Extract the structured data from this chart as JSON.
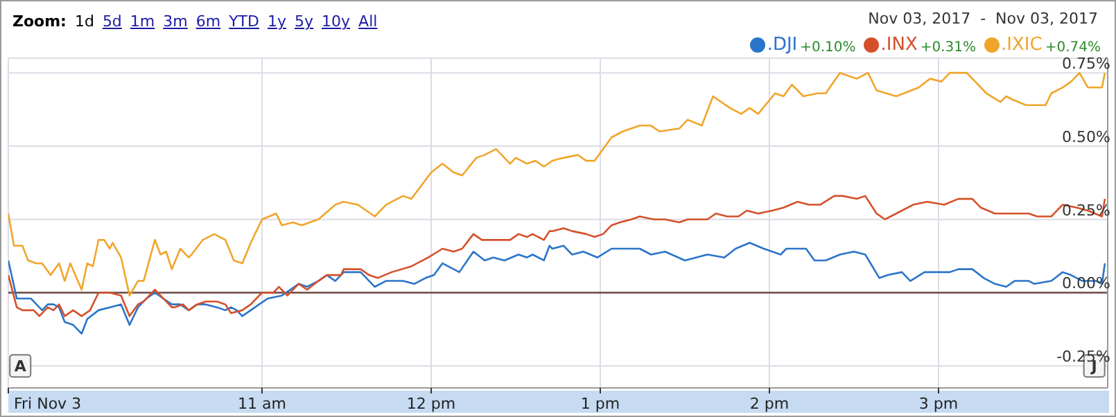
{
  "chart_data": {
    "type": "line",
    "annotations": [
      "Zoom:",
      "1d",
      "5d",
      "1m",
      "3m",
      "6m",
      "YTD",
      "1y",
      "5y",
      "10y",
      "All",
      "Nov 03, 2017  -  Nov 03, 2017",
      "+0.10%",
      "+0.31%",
      "+0.74%",
      {
        "text": "A",
        "x": "2017-11-03T09:34",
        "y": -0.25
      },
      {
        "text": "J",
        "x": "2017-11-03T15:55",
        "y": -0.25
      }
    ],
    "series": [
      {
        "name": ".DJI",
        "color": "#2a74c9",
        "x": [
          "2017-11-03T09:30",
          "2017-11-03T09:33",
          "2017-11-03T09:35",
          "2017-11-03T09:38",
          "2017-11-03T09:40",
          "2017-11-03T09:42",
          "2017-11-03T09:44",
          "2017-11-03T09:46",
          "2017-11-03T09:48",
          "2017-11-03T09:50",
          "2017-11-03T09:53",
          "2017-11-03T09:56",
          "2017-11-03T09:58",
          "2017-11-03T10:02",
          "2017-11-03T10:06",
          "2017-11-03T10:10",
          "2017-11-03T10:13",
          "2017-11-03T10:16",
          "2017-11-03T10:19",
          "2017-11-03T10:22",
          "2017-11-03T10:25",
          "2017-11-03T10:28",
          "2017-11-03T10:31",
          "2017-11-03T10:34",
          "2017-11-03T10:37",
          "2017-11-03T10:40",
          "2017-11-03T10:44",
          "2017-11-03T10:47",
          "2017-11-03T10:49",
          "2017-11-03T10:51",
          "2017-11-03T10:53",
          "2017-11-03T10:59",
          "2017-11-03T11:02",
          "2017-11-03T11:07",
          "2017-11-03T11:13",
          "2017-11-03T11:16",
          "2017-11-03T11:20",
          "2017-11-03T11:23",
          "2017-11-03T11:26",
          "2017-11-03T11:29",
          "2017-11-03T11:35",
          "2017-11-03T11:38",
          "2017-11-03T11:40",
          "2017-11-03T11:44",
          "2017-11-03T11:50",
          "2017-11-03T11:54",
          "2017-11-03T11:58",
          "2017-11-03T12:01",
          "2017-11-03T12:04",
          "2017-11-03T12:08",
          "2017-11-03T12:10",
          "2017-11-03T12:15",
          "2017-11-03T12:19",
          "2017-11-03T12:22",
          "2017-11-03T12:26",
          "2017-11-03T12:31",
          "2017-11-03T12:34",
          "2017-11-03T12:36",
          "2017-11-03T12:40",
          "2017-11-03T12:42",
          "2017-11-03T12:43",
          "2017-11-03T12:47",
          "2017-11-03T12:50",
          "2017-11-03T12:54",
          "2017-11-03T12:59",
          "2017-11-03T13:04",
          "2017-11-03T13:08",
          "2017-11-03T13:14",
          "2017-11-03T13:18",
          "2017-11-03T13:23",
          "2017-11-03T13:30",
          "2017-11-03T13:34",
          "2017-11-03T13:38",
          "2017-11-03T13:44",
          "2017-11-03T13:48",
          "2017-11-03T13:53",
          "2017-11-03T13:58",
          "2017-11-03T14:04",
          "2017-11-03T14:06",
          "2017-11-03T14:13",
          "2017-11-03T14:16",
          "2017-11-03T14:20",
          "2017-11-03T14:25",
          "2017-11-03T14:30",
          "2017-11-03T14:34",
          "2017-11-03T14:39",
          "2017-11-03T14:42",
          "2017-11-03T14:47",
          "2017-11-03T14:50",
          "2017-11-03T14:55",
          "2017-11-03T15:01",
          "2017-11-03T15:04",
          "2017-11-03T15:07",
          "2017-11-03T15:12",
          "2017-11-03T15:16",
          "2017-11-03T15:20",
          "2017-11-03T15:24",
          "2017-11-03T15:27",
          "2017-11-03T15:32",
          "2017-11-03T15:34",
          "2017-11-03T15:40",
          "2017-11-03T15:44",
          "2017-11-03T15:47",
          "2017-11-03T15:51",
          "2017-11-03T15:56",
          "2017-11-03T15:58",
          "2017-11-03T15:59"
        ],
        "values": [
          0.11,
          -0.02,
          -0.02,
          -0.02,
          -0.04,
          -0.06,
          -0.04,
          -0.04,
          -0.05,
          -0.1,
          -0.11,
          -0.14,
          -0.09,
          -0.06,
          -0.05,
          -0.04,
          -0.11,
          -0.05,
          -0.02,
          0.0,
          -0.02,
          -0.04,
          -0.04,
          -0.06,
          -0.04,
          -0.04,
          -0.05,
          -0.06,
          -0.05,
          -0.06,
          -0.08,
          -0.04,
          -0.02,
          -0.01,
          0.03,
          0.02,
          0.04,
          0.06,
          0.04,
          0.07,
          0.07,
          0.04,
          0.02,
          0.04,
          0.04,
          0.03,
          0.05,
          0.06,
          0.1,
          0.08,
          0.07,
          0.14,
          0.11,
          0.12,
          0.11,
          0.13,
          0.12,
          0.13,
          0.11,
          0.16,
          0.15,
          0.16,
          0.13,
          0.14,
          0.12,
          0.15,
          0.15,
          0.15,
          0.13,
          0.14,
          0.11,
          0.12,
          0.13,
          0.12,
          0.15,
          0.17,
          0.15,
          0.13,
          0.15,
          0.15,
          0.11,
          0.11,
          0.13,
          0.14,
          0.13,
          0.05,
          0.06,
          0.07,
          0.04,
          0.07,
          0.07,
          0.07,
          0.08,
          0.08,
          0.05,
          0.03,
          0.02,
          0.04,
          0.04,
          0.03,
          0.04,
          0.07,
          0.06,
          0.04,
          0.04,
          0.03,
          0.1
        ]
      },
      {
        "name": ".INX",
        "color": "#d4502a",
        "x": [
          "2017-11-03T09:30",
          "2017-11-03T09:33",
          "2017-11-03T09:35",
          "2017-11-03T09:39",
          "2017-11-03T09:41",
          "2017-11-03T09:44",
          "2017-11-03T09:46",
          "2017-11-03T09:48",
          "2017-11-03T09:50",
          "2017-11-03T09:53",
          "2017-11-03T09:56",
          "2017-11-03T09:59",
          "2017-11-03T10:02",
          "2017-11-03T10:06",
          "2017-11-03T10:10",
          "2017-11-03T10:13",
          "2017-11-03T10:16",
          "2017-11-03T10:18",
          "2017-11-03T10:22",
          "2017-11-03T10:25",
          "2017-11-03T10:28",
          "2017-11-03T10:29",
          "2017-11-03T10:32",
          "2017-11-03T10:34",
          "2017-11-03T10:37",
          "2017-11-03T10:40",
          "2017-11-03T10:44",
          "2017-11-03T10:47",
          "2017-11-03T10:49",
          "2017-11-03T10:53",
          "2017-11-03T10:56",
          "2017-11-03T11:00",
          "2017-11-03T11:04",
          "2017-11-03T11:06",
          "2017-11-03T11:09",
          "2017-11-03T11:13",
          "2017-11-03T11:16",
          "2017-11-03T11:20",
          "2017-11-03T11:23",
          "2017-11-03T11:28",
          "2017-11-03T11:29",
          "2017-11-03T11:35",
          "2017-11-03T11:38",
          "2017-11-03T11:41",
          "2017-11-03T11:46",
          "2017-11-03T11:53",
          "2017-11-03T11:59",
          "2017-11-03T12:04",
          "2017-11-03T12:08",
          "2017-11-03T12:11",
          "2017-11-03T12:15",
          "2017-11-03T12:18",
          "2017-11-03T12:22",
          "2017-11-03T12:28",
          "2017-11-03T12:31",
          "2017-11-03T12:34",
          "2017-11-03T12:36",
          "2017-11-03T12:40",
          "2017-11-03T12:42",
          "2017-11-03T12:43",
          "2017-11-03T12:47",
          "2017-11-03T12:50",
          "2017-11-03T12:55",
          "2017-11-03T12:58",
          "2017-11-03T13:01",
          "2017-11-03T13:04",
          "2017-11-03T13:07",
          "2017-11-03T13:11",
          "2017-11-03T13:14",
          "2017-11-03T13:19",
          "2017-11-03T13:23",
          "2017-11-03T13:28",
          "2017-11-03T13:31",
          "2017-11-03T13:34",
          "2017-11-03T13:38",
          "2017-11-03T13:41",
          "2017-11-03T13:45",
          "2017-11-03T13:49",
          "2017-11-03T13:52",
          "2017-11-03T13:56",
          "2017-11-03T14:01",
          "2017-11-03T14:05",
          "2017-11-03T14:10",
          "2017-11-03T14:14",
          "2017-11-03T14:18",
          "2017-11-03T14:23",
          "2017-11-03T14:26",
          "2017-11-03T14:31",
          "2017-11-03T14:34",
          "2017-11-03T14:38",
          "2017-11-03T14:41",
          "2017-11-03T14:45",
          "2017-11-03T14:51",
          "2017-11-03T14:56",
          "2017-11-03T15:02",
          "2017-11-03T15:07",
          "2017-11-03T15:12",
          "2017-11-03T15:15",
          "2017-11-03T15:20",
          "2017-11-03T15:27",
          "2017-11-03T15:32",
          "2017-11-03T15:35",
          "2017-11-03T15:40",
          "2017-11-03T15:44",
          "2017-11-03T15:49",
          "2017-11-03T15:53",
          "2017-11-03T15:58",
          "2017-11-03T15:59"
        ],
        "values": [
          0.06,
          -0.05,
          -0.06,
          -0.06,
          -0.08,
          -0.05,
          -0.06,
          -0.04,
          -0.08,
          -0.06,
          -0.08,
          -0.06,
          0.0,
          0.0,
          -0.01,
          -0.08,
          -0.04,
          -0.03,
          0.01,
          -0.02,
          -0.05,
          -0.05,
          -0.04,
          -0.06,
          -0.04,
          -0.03,
          -0.03,
          -0.04,
          -0.07,
          -0.06,
          -0.04,
          0.0,
          0.0,
          0.02,
          -0.01,
          0.03,
          0.01,
          0.04,
          0.06,
          0.06,
          0.08,
          0.08,
          0.06,
          0.05,
          0.07,
          0.09,
          0.12,
          0.15,
          0.14,
          0.15,
          0.2,
          0.18,
          0.18,
          0.18,
          0.2,
          0.19,
          0.2,
          0.18,
          0.21,
          0.21,
          0.22,
          0.21,
          0.2,
          0.19,
          0.2,
          0.23,
          0.24,
          0.25,
          0.26,
          0.25,
          0.25,
          0.24,
          0.25,
          0.25,
          0.25,
          0.27,
          0.26,
          0.26,
          0.28,
          0.27,
          0.28,
          0.29,
          0.31,
          0.3,
          0.3,
          0.33,
          0.33,
          0.32,
          0.33,
          0.27,
          0.25,
          0.27,
          0.3,
          0.31,
          0.3,
          0.32,
          0.32,
          0.29,
          0.27,
          0.27,
          0.27,
          0.26,
          0.26,
          0.3,
          0.29,
          0.28,
          0.26,
          0.32
        ]
      },
      {
        "name": ".IXIC",
        "color": "#f0a52a",
        "x": [
          "2017-11-03T09:30",
          "2017-11-03T09:32",
          "2017-11-03T09:35",
          "2017-11-03T09:37",
          "2017-11-03T09:40",
          "2017-11-03T09:42",
          "2017-11-03T09:45",
          "2017-11-03T09:48",
          "2017-11-03T09:50",
          "2017-11-03T09:52",
          "2017-11-03T09:56",
          "2017-11-03T09:58",
          "2017-11-03T10:00",
          "2017-11-03T10:02",
          "2017-11-03T10:04",
          "2017-11-03T10:06",
          "2017-11-03T10:07",
          "2017-11-03T10:10",
          "2017-11-03T10:13",
          "2017-11-03T10:16",
          "2017-11-03T10:18",
          "2017-11-03T10:22",
          "2017-11-03T10:24",
          "2017-11-03T10:26",
          "2017-11-03T10:28",
          "2017-11-03T10:31",
          "2017-11-03T10:34",
          "2017-11-03T10:35",
          "2017-11-03T10:39",
          "2017-11-03T10:43",
          "2017-11-03T10:47",
          "2017-11-03T10:50",
          "2017-11-03T10:53",
          "2017-11-03T10:56",
          "2017-11-03T11:00",
          "2017-11-03T11:05",
          "2017-11-03T11:07",
          "2017-11-03T11:11",
          "2017-11-03T11:14",
          "2017-11-03T11:20",
          "2017-11-03T11:26",
          "2017-11-03T11:29",
          "2017-11-03T11:34",
          "2017-11-03T11:40",
          "2017-11-03T11:44",
          "2017-11-03T11:50",
          "2017-11-03T11:53",
          "2017-11-03T12:00",
          "2017-11-03T12:04",
          "2017-11-03T12:08",
          "2017-11-03T12:11",
          "2017-11-03T12:16",
          "2017-11-03T12:19",
          "2017-11-03T12:23",
          "2017-11-03T12:28",
          "2017-11-03T12:30",
          "2017-11-03T12:34",
          "2017-11-03T12:37",
          "2017-11-03T12:40",
          "2017-11-03T12:43",
          "2017-11-03T12:47",
          "2017-11-03T12:52",
          "2017-11-03T12:55",
          "2017-11-03T12:58",
          "2017-11-03T13:01",
          "2017-11-03T13:04",
          "2017-11-03T13:08",
          "2017-11-03T13:14",
          "2017-11-03T13:18",
          "2017-11-03T13:21",
          "2017-11-03T13:28",
          "2017-11-03T13:31",
          "2017-11-03T13:36",
          "2017-11-03T13:40",
          "2017-11-03T13:46",
          "2017-11-03T13:50",
          "2017-11-03T13:53",
          "2017-11-03T13:56",
          "2017-11-03T14:02",
          "2017-11-03T14:05",
          "2017-11-03T14:08",
          "2017-11-03T14:12",
          "2017-11-03T14:17",
          "2017-11-03T14:20",
          "2017-11-03T14:25",
          "2017-11-03T14:31",
          "2017-11-03T14:35",
          "2017-11-03T14:38",
          "2017-11-03T14:45",
          "2017-11-03T14:53",
          "2017-11-03T14:57",
          "2017-11-03T15:01",
          "2017-11-03T15:04",
          "2017-11-03T15:10",
          "2017-11-03T15:17",
          "2017-11-03T15:22",
          "2017-11-03T15:24",
          "2017-11-03T15:26",
          "2017-11-03T15:31",
          "2017-11-03T15:38",
          "2017-11-03T15:40",
          "2017-11-03T15:44",
          "2017-11-03T15:47",
          "2017-11-03T15:50",
          "2017-11-03T15:53",
          "2017-11-03T15:58",
          "2017-11-03T15:59"
        ],
        "values": [
          0.27,
          0.16,
          0.16,
          0.11,
          0.1,
          0.1,
          0.06,
          0.1,
          0.04,
          0.1,
          0.01,
          0.1,
          0.09,
          0.18,
          0.18,
          0.15,
          0.17,
          0.12,
          -0.01,
          0.04,
          0.04,
          0.18,
          0.13,
          0.14,
          0.08,
          0.15,
          0.12,
          0.13,
          0.18,
          0.2,
          0.18,
          0.11,
          0.1,
          0.17,
          0.25,
          0.27,
          0.23,
          0.24,
          0.23,
          0.25,
          0.3,
          0.31,
          0.3,
          0.26,
          0.3,
          0.33,
          0.32,
          0.41,
          0.44,
          0.41,
          0.4,
          0.46,
          0.47,
          0.49,
          0.44,
          0.46,
          0.44,
          0.45,
          0.43,
          0.45,
          0.46,
          0.47,
          0.45,
          0.45,
          0.49,
          0.53,
          0.55,
          0.57,
          0.57,
          0.55,
          0.56,
          0.59,
          0.57,
          0.67,
          0.63,
          0.61,
          0.63,
          0.61,
          0.68,
          0.67,
          0.71,
          0.67,
          0.68,
          0.68,
          0.75,
          0.73,
          0.75,
          0.69,
          0.67,
          0.7,
          0.73,
          0.72,
          0.75,
          0.75,
          0.68,
          0.65,
          0.67,
          0.66,
          0.64,
          0.64,
          0.68,
          0.7,
          0.72,
          0.75,
          0.7,
          0.7,
          0.75
        ]
      }
    ],
    "xlim": [
      "2017-11-03T09:30",
      "2017-11-03T16:00"
    ],
    "xticks": [
      {
        "value": "2017-11-03T09:30",
        "label": "Fri Nov 3"
      },
      {
        "value": "2017-11-03T11:00",
        "label": "11 am"
      },
      {
        "value": "2017-11-03T12:00",
        "label": "12 pm"
      },
      {
        "value": "2017-11-03T13:00",
        "label": "1 pm"
      },
      {
        "value": "2017-11-03T14:00",
        "label": "2 pm"
      },
      {
        "value": "2017-11-03T15:00",
        "label": "3 pm"
      }
    ],
    "ylim": [
      -0.325,
      0.8
    ],
    "yticks": [
      {
        "value": -0.25,
        "label": "-0.25%"
      },
      {
        "value": 0,
        "label": "0.00%"
      },
      {
        "value": 0.25,
        "label": "0.25%"
      },
      {
        "value": 0.5,
        "label": "0.50%"
      },
      {
        "value": 0.75,
        "label": "0.75%"
      }
    ],
    "ref_lines": [
      {
        "axis": "y",
        "value": 0,
        "color": "#6b4a45"
      }
    ],
    "grid": true,
    "legend": "top right"
  }
}
